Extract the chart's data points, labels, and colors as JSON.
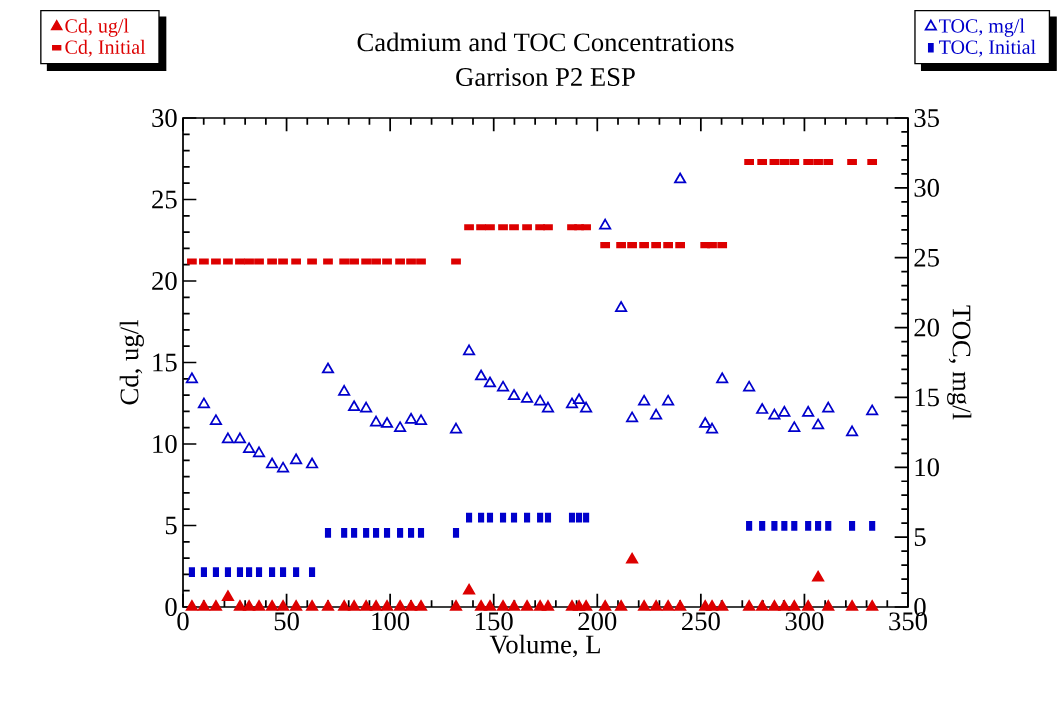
{
  "chart_data": {
    "type": "scatter",
    "title": "Cadmium and TOC Concentrations",
    "subtitle": "Garrison P2 ESP",
    "xlabel": "Volume, L",
    "ylabel": "Cd, ug/l",
    "y2label": "TOC, mg/l",
    "xlim": [
      0,
      350
    ],
    "xticks": [
      0,
      50,
      100,
      150,
      200,
      250,
      300,
      350
    ],
    "ylim": [
      0,
      30
    ],
    "yticks": [
      0,
      5,
      10,
      15,
      20,
      25,
      30
    ],
    "y2lim": [
      0,
      35
    ],
    "y2ticks": [
      0,
      5,
      10,
      15,
      20,
      25,
      30,
      35
    ],
    "legend": "top",
    "grid": false,
    "series": [
      {
        "name": "Cd, ug/l",
        "color": "#dd0000",
        "marker": "triangle",
        "axis": "y",
        "x": [
          4.3,
          10.1,
          15.9,
          21.7,
          27.5,
          31.9,
          36.7,
          43.0,
          48.3,
          54.6,
          62.3,
          70.0,
          77.8,
          82.6,
          88.4,
          93.2,
          98.5,
          104.8,
          110.1,
          114.9,
          131.8,
          138.1,
          143.9,
          148.2,
          154.5,
          159.8,
          166.1,
          172.4,
          176.2,
          187.8,
          191.2,
          194.6,
          203.8,
          211.5,
          216.8,
          222.6,
          228.4,
          234.2,
          240.0,
          252.1,
          255.4,
          260.3,
          273.3,
          279.6,
          285.5,
          290.3,
          295.1,
          301.8,
          306.6,
          311.5,
          323.0,
          332.7
        ],
        "values": [
          0,
          0,
          0,
          0.6,
          0,
          0,
          0,
          0,
          0,
          0,
          0,
          0,
          0,
          0,
          0,
          0,
          0,
          0,
          0,
          0,
          0,
          1.0,
          0,
          0,
          0,
          0,
          0,
          0,
          0,
          0,
          0,
          0,
          0,
          0,
          2.9,
          0,
          0,
          0,
          0,
          0,
          0,
          0,
          0,
          0,
          0,
          0,
          0,
          0,
          1.8,
          0,
          0,
          0
        ]
      },
      {
        "name": "Cd, Initial",
        "color": "#dd0000",
        "marker": "square",
        "axis": "y",
        "x": [
          4.3,
          10.1,
          15.9,
          21.7,
          27.5,
          31.9,
          36.7,
          43.0,
          48.3,
          54.6,
          62.3,
          70.0,
          77.8,
          82.6,
          88.4,
          93.2,
          98.5,
          104.8,
          110.1,
          114.9,
          131.8,
          138.1,
          143.9,
          148.2,
          154.5,
          159.8,
          166.1,
          172.4,
          176.2,
          187.8,
          191.2,
          194.6,
          203.8,
          211.5,
          216.8,
          222.6,
          228.4,
          234.2,
          240.0,
          252.1,
          255.4,
          260.3,
          273.3,
          279.6,
          285.5,
          290.3,
          295.1,
          301.8,
          306.6,
          311.5,
          323.0,
          332.7
        ],
        "values": [
          21.2,
          21.2,
          21.2,
          21.2,
          21.2,
          21.2,
          21.2,
          21.2,
          21.2,
          21.2,
          21.2,
          21.2,
          21.2,
          21.2,
          21.2,
          21.2,
          21.2,
          21.2,
          21.2,
          21.2,
          21.2,
          23.3,
          23.3,
          23.3,
          23.3,
          23.3,
          23.3,
          23.3,
          23.3,
          23.3,
          23.3,
          23.3,
          22.2,
          22.2,
          22.2,
          22.2,
          22.2,
          22.2,
          22.2,
          22.2,
          22.2,
          22.2,
          27.3,
          27.3,
          27.3,
          27.3,
          27.3,
          27.3,
          27.3,
          27.3,
          27.3,
          27.3
        ]
      },
      {
        "name": "TOC, mg/l",
        "color": "#0000cc",
        "marker": "triangle open",
        "axis": "y2",
        "x": [
          4.3,
          10.1,
          15.9,
          21.7,
          27.5,
          31.9,
          36.7,
          43.0,
          48.3,
          54.6,
          62.3,
          70.0,
          77.8,
          82.6,
          88.4,
          93.2,
          98.5,
          104.8,
          110.1,
          114.9,
          131.8,
          138.1,
          143.9,
          148.2,
          154.5,
          159.8,
          166.1,
          172.4,
          176.2,
          187.8,
          191.2,
          194.6,
          203.8,
          211.5,
          216.8,
          222.6,
          228.4,
          234.2,
          240.0,
          252.1,
          255.4,
          260.3,
          273.3,
          279.6,
          285.5,
          290.3,
          295.1,
          301.8,
          306.6,
          311.5,
          323.0,
          332.7
        ],
        "values": [
          16.3,
          14.5,
          13.3,
          12.0,
          12.0,
          11.3,
          11.0,
          10.2,
          9.9,
          10.5,
          10.2,
          17.0,
          15.4,
          14.3,
          14.2,
          13.2,
          13.1,
          12.8,
          13.4,
          13.3,
          12.7,
          18.3,
          16.5,
          16.0,
          15.7,
          15.1,
          14.9,
          14.7,
          14.2,
          14.5,
          14.8,
          14.2,
          27.3,
          21.4,
          13.5,
          14.7,
          13.7,
          14.7,
          30.6,
          13.1,
          12.7,
          16.3,
          15.7,
          14.1,
          13.7,
          13.9,
          12.8,
          13.9,
          13.0,
          14.2,
          12.5,
          14.0
        ]
      },
      {
        "name": "TOC, Initial",
        "color": "#0000cc",
        "marker": "square",
        "axis": "y2",
        "x": [
          4.3,
          10.1,
          15.9,
          21.7,
          27.5,
          31.9,
          36.7,
          43.0,
          48.3,
          54.6,
          62.3,
          70.0,
          77.8,
          82.6,
          88.4,
          93.2,
          98.5,
          104.8,
          110.1,
          114.9,
          131.8,
          138.1,
          143.9,
          148.2,
          154.5,
          159.8,
          166.1,
          172.4,
          176.2,
          187.8,
          191.2,
          194.6,
          273.3,
          279.6,
          285.5,
          290.3,
          295.1,
          301.8,
          306.6,
          311.5,
          323.0,
          332.7
        ],
        "values": [
          2.5,
          2.5,
          2.5,
          2.5,
          2.5,
          2.5,
          2.5,
          2.5,
          2.5,
          2.5,
          2.5,
          5.3,
          5.3,
          5.3,
          5.3,
          5.3,
          5.3,
          5.3,
          5.3,
          5.3,
          5.3,
          6.4,
          6.4,
          6.4,
          6.4,
          6.4,
          6.4,
          6.4,
          6.4,
          6.4,
          6.4,
          6.4,
          5.8,
          5.8,
          5.8,
          5.8,
          5.8,
          5.8,
          5.8,
          5.8,
          5.8,
          5.8
        ]
      }
    ]
  }
}
